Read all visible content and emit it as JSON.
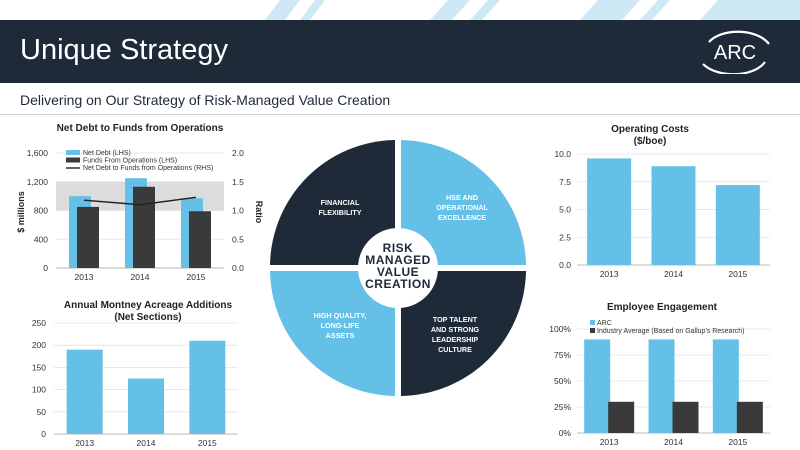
{
  "header": {
    "title": "Unique Strategy",
    "subtitle": "Delivering on Our Strategy of Risk-Managed Value Creation",
    "logo_text": "ARC"
  },
  "colors": {
    "navy": "#1e2a38",
    "sky": "#65c0e8",
    "dark_bar": "#3a3a3a",
    "light_stripe": "#cfe8f5"
  },
  "wheel": {
    "center_lines": [
      "RISK",
      "MANAGED",
      "VALUE",
      "CREATION"
    ],
    "quadrants": [
      {
        "lines": [
          "FINANCIAL",
          "FLEXIBILITY"
        ],
        "color": "#1e2a38"
      },
      {
        "lines": [
          "HSE AND",
          "OPERATIONAL",
          "EXCELLENCE"
        ],
        "color": "#65c0e8"
      },
      {
        "lines": [
          "TOP TALENT",
          "AND STRONG",
          "LEADERSHIP",
          "CULTURE"
        ],
        "color": "#1e2a38"
      },
      {
        "lines": [
          "HIGH QUALITY,",
          "LONG-LIFE",
          "ASSETS"
        ],
        "color": "#65c0e8"
      }
    ]
  },
  "chart_data": [
    {
      "id": "netdebt",
      "type": "bar",
      "title": "Net Debt to Funds from Operations",
      "categories": [
        "2013",
        "2014",
        "2015"
      ],
      "ylabel": "$ millions",
      "y2label": "Ratio",
      "ylim": [
        0,
        1600
      ],
      "y2lim": [
        0,
        2.0
      ],
      "yticks": [
        "0",
        "400",
        "800",
        "1,200",
        "1,600"
      ],
      "y2ticks": [
        "0.0",
        "0.5",
        "1.0",
        "1.5",
        "2.0"
      ],
      "shaded_band": [
        800,
        1200
      ],
      "series": [
        {
          "name": "Net Debt (LHS)",
          "values": [
            1000,
            1250,
            970
          ],
          "color": "#65c0e8"
        },
        {
          "name": "Funds From Operations (LHS)",
          "values": [
            850,
            1130,
            790
          ],
          "color": "#3a3a3a"
        },
        {
          "name": "Net Debt to Funds from Operations (RHS)",
          "values": [
            1.18,
            1.1,
            1.23
          ],
          "color": "#222222",
          "kind": "line",
          "axis": "right"
        }
      ]
    },
    {
      "id": "opcosts",
      "type": "bar",
      "title": "Operating Costs",
      "subtitle": "($/boe)",
      "categories": [
        "2013",
        "2014",
        "2015"
      ],
      "ylim": [
        0,
        10
      ],
      "yticks": [
        "0.0",
        "2.5",
        "5.0",
        "7.5",
        "10.0"
      ],
      "series": [
        {
          "name": "",
          "values": [
            9.6,
            8.9,
            7.2
          ],
          "color": "#65c0e8"
        }
      ]
    },
    {
      "id": "acreage",
      "type": "bar",
      "title": "Annual Montney Acreage Additions",
      "subtitle": "(Net Sections)",
      "categories": [
        "2013",
        "2014",
        "2015"
      ],
      "ylim": [
        0,
        250
      ],
      "yticks": [
        "0",
        "50",
        "100",
        "150",
        "200",
        "250"
      ],
      "series": [
        {
          "name": "",
          "values": [
            190,
            125,
            210
          ],
          "color": "#65c0e8"
        }
      ]
    },
    {
      "id": "engagement",
      "type": "bar",
      "title": "Employee Engagement",
      "categories": [
        "2013",
        "2014",
        "2015"
      ],
      "ylim": [
        0,
        100
      ],
      "yticks": [
        "0%",
        "25%",
        "50%",
        "75%",
        "100%"
      ],
      "series": [
        {
          "name": "ARC",
          "values": [
            90,
            90,
            90
          ],
          "color": "#65c0e8"
        },
        {
          "name": "Industry Average (Based on Gallup's Research)",
          "values": [
            30,
            30,
            30
          ],
          "color": "#3a3a3a"
        }
      ]
    }
  ]
}
